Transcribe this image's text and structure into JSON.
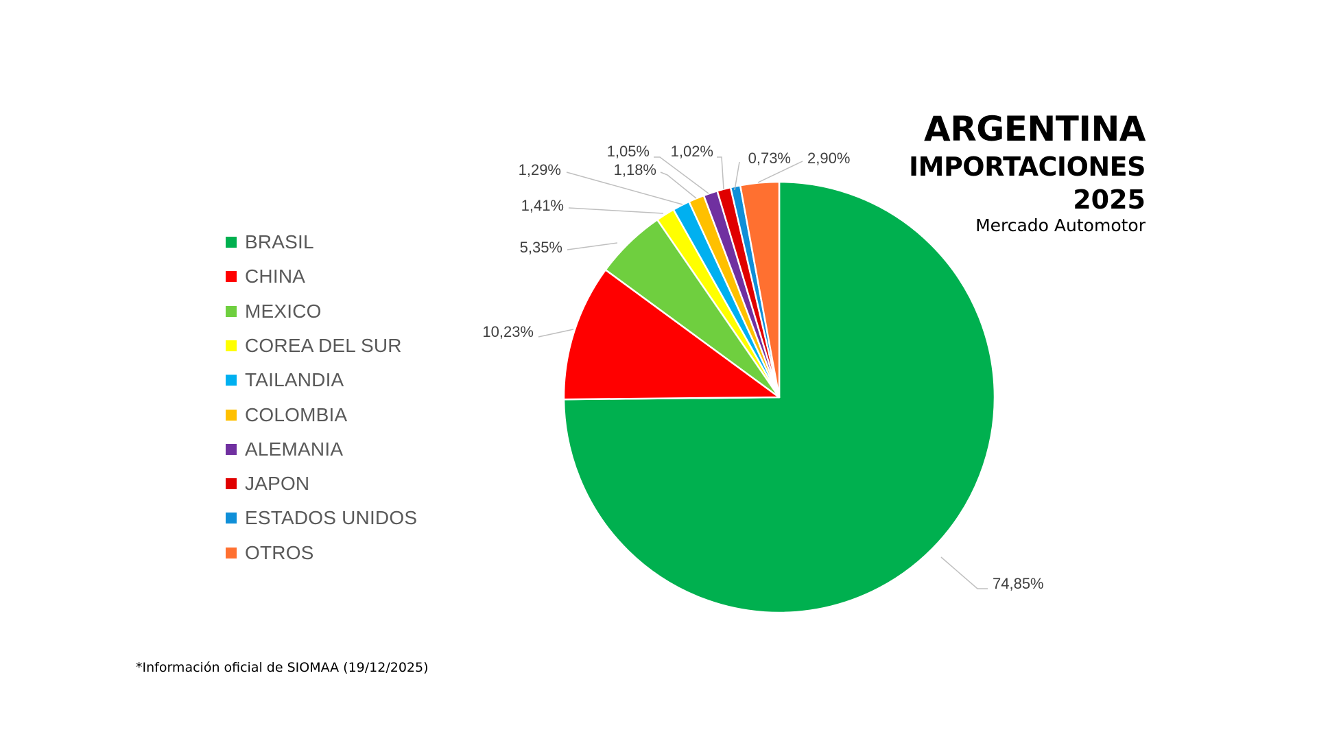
{
  "title": {
    "main": "ARGENTINA",
    "sub": "IMPORTACIONES",
    "year": "2025",
    "caption": "Mercado Automotor"
  },
  "footnote": "*Información oficial de SIOMAA (19/12/2025)",
  "chart_data": {
    "type": "pie",
    "title": "ARGENTINA IMPORTACIONES 2025 - Mercado Automotor",
    "unit": "%",
    "legend_position": "left",
    "categories": [
      "BRASIL",
      "CHINA",
      "MEXICO",
      "COREA DEL SUR",
      "TAILANDIA",
      "COLOMBIA",
      "ALEMANIA",
      "JAPON",
      "ESTADOS UNIDOS",
      "OTROS"
    ],
    "values": [
      74.85,
      10.23,
      5.35,
      1.41,
      1.29,
      1.18,
      1.05,
      1.02,
      0.73,
      2.9
    ],
    "labels": [
      "74,85%",
      "10,23%",
      "5,35%",
      "1,41%",
      "1,29%",
      "1,18%",
      "1,05%",
      "1,02%",
      "0,73%",
      "2,90%"
    ],
    "colors": [
      "#00b04f",
      "#ff0000",
      "#6fcf3f",
      "#ffff00",
      "#00b0f0",
      "#ffc000",
      "#7030a0",
      "#e00000",
      "#0f8fd8",
      "#ff7030"
    ],
    "start_angle_deg": 0,
    "direction": "clockwise"
  }
}
